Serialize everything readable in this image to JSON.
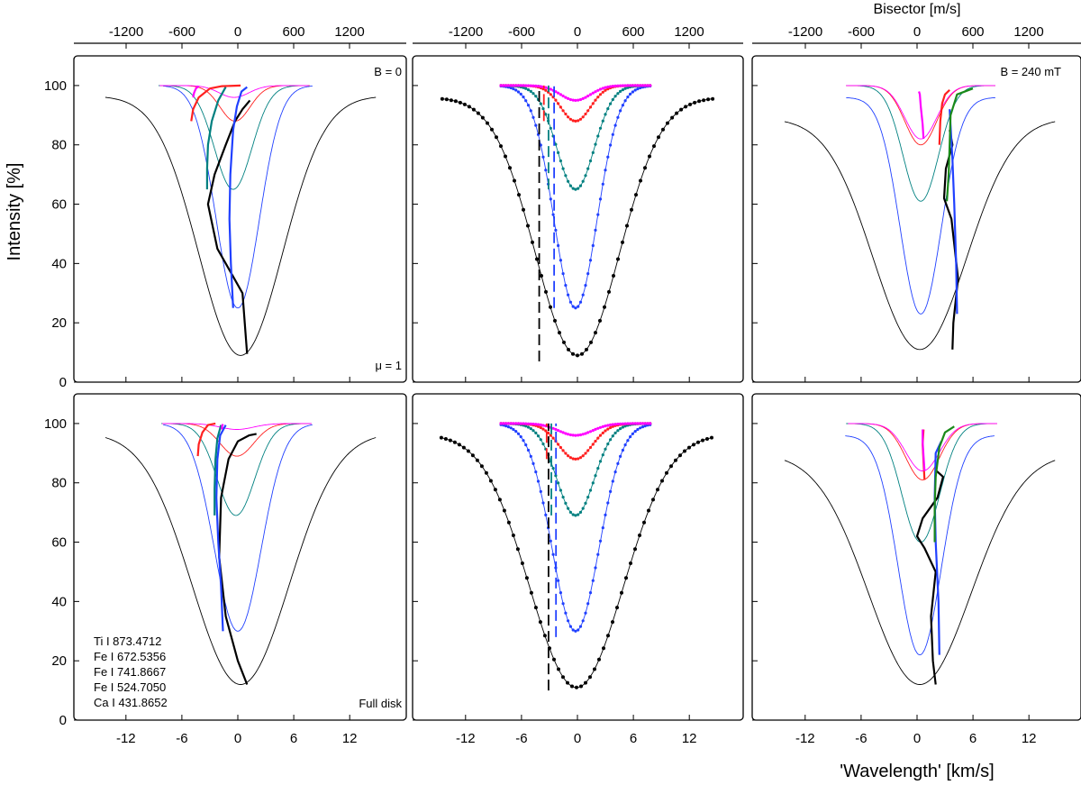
{
  "figure": {
    "ylabel": "Intensity [%]",
    "xlabel": "'Wavelength' [km/s]",
    "top_xlabel": "Bisector [m/s]"
  },
  "axes": {
    "x_ticks": [
      -12,
      -6,
      0,
      6,
      12
    ],
    "x_tick_labels": [
      "-12",
      "-6",
      "0",
      "6",
      "12"
    ],
    "x_range": [
      -15,
      15
    ],
    "y_ticks": [
      0,
      20,
      40,
      60,
      80,
      100
    ],
    "y_tick_labels": [
      "0",
      "20",
      "40",
      "60",
      "80",
      "100"
    ],
    "y_range": [
      0,
      110
    ],
    "top_ticks": [
      -1200,
      -600,
      0,
      600,
      1200
    ],
    "top_tick_labels": [
      "-1200",
      "-600",
      "0",
      "600",
      "1200"
    ],
    "top_range": [
      -1500,
      1500
    ]
  },
  "annotations": {
    "panel_tl_corner": "B = 0",
    "panel_tl_bottom": "μ = 1",
    "panel_tr_corner": "B = 240 mT",
    "panel_bl_bottom": "Full disk"
  },
  "legend": {
    "lines": [
      "Ti I  873.4712",
      "Fe I 672.5356",
      "Fe I 741.8667",
      "Fe I 524.7050",
      "Ca I 431.8652"
    ]
  },
  "colors": {
    "ti": "#ff00ff",
    "fe672": "#ff2020",
    "fe741": "#008080",
    "fe741_green": "#1a8a1a",
    "fe524": "#2040ff",
    "ca": "#000000"
  },
  "chart_data": [
    {
      "panel": "top-left",
      "type": "line",
      "ylim": [
        0,
        110
      ],
      "xlim": [
        -15,
        15
      ],
      "profiles": [
        {
          "line": "Ca I 431.8652",
          "depth": 9,
          "halfwidth": 4.5,
          "continuum": 96.5,
          "center": 0.3
        },
        {
          "line": "Fe I 524.7050",
          "depth": 25,
          "halfwidth": 2.3,
          "continuum": 100,
          "center": 0
        },
        {
          "line": "Fe I 741.8667",
          "depth": 65,
          "halfwidth": 2.0,
          "continuum": 100,
          "center": -0.5
        },
        {
          "line": "Fe I 672.5356",
          "depth": 88,
          "halfwidth": 1.6,
          "continuum": 100,
          "center": -0.3
        },
        {
          "line": "Ti I 873.4712",
          "depth": 96,
          "halfwidth": 1.6,
          "continuum": 100,
          "center": -0.4
        }
      ],
      "bisectors": [
        {
          "line": "Ca I 431.8652",
          "points": [
            [
              100,
              9.5
            ],
            [
              50,
              30
            ],
            [
              -220,
              45
            ],
            [
              -320,
              60
            ],
            [
              -250,
              70
            ],
            [
              -130,
              80
            ],
            [
              -30,
              88
            ],
            [
              50,
              92
            ],
            [
              130,
              95
            ]
          ]
        },
        {
          "line": "Fe I 524.7050",
          "points": [
            [
              -50,
              25
            ],
            [
              -75,
              40
            ],
            [
              -90,
              55
            ],
            [
              -80,
              70
            ],
            [
              -50,
              85
            ],
            [
              -10,
              93
            ],
            [
              40,
              98
            ],
            [
              100,
              99.5
            ]
          ]
        },
        {
          "line": "Fe I 741.8667",
          "points": [
            [
              -330,
              65
            ],
            [
              -330,
              72
            ],
            [
              -320,
              80
            ],
            [
              -280,
              88
            ],
            [
              -210,
              95
            ],
            [
              -130,
              99.5
            ]
          ]
        },
        {
          "line": "Fe I 672.5356",
          "points": [
            [
              -500,
              88
            ],
            [
              -480,
              92
            ],
            [
              -420,
              96
            ],
            [
              -300,
              99
            ],
            [
              -170,
              99.8
            ],
            [
              30,
              100
            ]
          ]
        },
        {
          "line": "Ti I 873.4712",
          "points": [
            [
              -480,
              96
            ],
            [
              -470,
              97.5
            ],
            [
              -450,
              99
            ],
            [
              -420,
              99.8
            ]
          ]
        }
      ]
    },
    {
      "panel": "top-center",
      "type": "line",
      "ylim": [
        0,
        110
      ],
      "xlim": [
        -15,
        15
      ],
      "profiles": [
        {
          "line": "Ca I 431.8652",
          "depth": 9,
          "halfwidth": 4.5,
          "continuum": 96,
          "center": 0
        },
        {
          "line": "Fe I 524.7050",
          "depth": 25,
          "halfwidth": 2.3,
          "continuum": 100,
          "center": -0.2
        },
        {
          "line": "Fe I 741.8667",
          "depth": 65,
          "halfwidth": 2.0,
          "continuum": 100,
          "center": -0.2
        },
        {
          "line": "Fe I 672.5356",
          "depth": 88,
          "halfwidth": 1.6,
          "continuum": 100,
          "center": -0.2
        },
        {
          "line": "Ti I 873.4712",
          "depth": 95,
          "halfwidth": 1.6,
          "continuum": 100,
          "center": -0.2
        }
      ],
      "reference_marks": [
        {
          "line": "Ca I 431.8652",
          "x": -4.1,
          "y_range": [
            7,
            100
          ]
        },
        {
          "line": "Fe I 524.7050",
          "x": -2.5,
          "y_range": [
            25,
            100
          ]
        },
        {
          "line": "Fe I 741.8667",
          "x": -3.1,
          "y_range": [
            65,
            100
          ]
        },
        {
          "line": "Fe I 672.5356",
          "x": -3.6,
          "y_range": [
            88,
            100
          ]
        }
      ]
    },
    {
      "panel": "top-right",
      "type": "line",
      "ylim": [
        0,
        110
      ],
      "xlim": [
        -15,
        15
      ],
      "profiles": [
        {
          "line": "Ca I 431.8652",
          "depth": 11,
          "halfwidth": 5.0,
          "continuum": 89,
          "center": 0.3
        },
        {
          "line": "Fe I 524.7050",
          "depth": 23,
          "halfwidth": 2.2,
          "continuum": 96,
          "center": 0.4
        },
        {
          "line": "Fe I 741.8667",
          "depth": 61,
          "halfwidth": 1.9,
          "continuum": 100,
          "center": 0.4
        },
        {
          "line": "Fe I 672.5356",
          "depth": 80,
          "halfwidth": 1.7,
          "continuum": 100,
          "center": 0.4
        },
        {
          "line": "Ti I 873.4712",
          "depth": 82,
          "halfwidth": 1.7,
          "continuum": 100,
          "center": 0.4
        }
      ],
      "bisectors": [
        {
          "line": "Ca I 431.8652",
          "points": [
            [
              380,
              11
            ],
            [
              390,
              20
            ],
            [
              440,
              35
            ],
            [
              370,
              55
            ],
            [
              290,
              62
            ],
            [
              310,
              72
            ],
            [
              380,
              80
            ],
            [
              350,
              85
            ]
          ]
        },
        {
          "line": "Fe I 524.7050",
          "points": [
            [
              430,
              23
            ],
            [
              420,
              40
            ],
            [
              400,
              60
            ],
            [
              380,
              75
            ],
            [
              350,
              92
            ]
          ]
        },
        {
          "line": "Fe I 741.8667",
          "points": [
            [
              320,
              61
            ],
            [
              340,
              70
            ],
            [
              350,
              80
            ],
            [
              360,
              90
            ],
            [
              430,
              97
            ],
            [
              600,
              99
            ]
          ]
        },
        {
          "line": "Fe I 672.5356",
          "points": [
            [
              240,
              80
            ],
            [
              250,
              88
            ],
            [
              270,
              94
            ],
            [
              300,
              97
            ],
            [
              350,
              98.5
            ]
          ]
        },
        {
          "line": "Ti I 873.4712",
          "points": [
            [
              70,
              82
            ],
            [
              60,
              87
            ],
            [
              40,
              93
            ],
            [
              30,
              97
            ],
            [
              20,
              98
            ]
          ]
        }
      ]
    },
    {
      "panel": "bottom-left",
      "type": "line",
      "ylim": [
        0,
        110
      ],
      "xlim": [
        -15,
        15
      ],
      "profiles": [
        {
          "line": "Ca I 431.8652",
          "depth": 12,
          "halfwidth": 5.2,
          "continuum": 97,
          "center": 0.3
        },
        {
          "line": "Fe I 524.7050",
          "depth": 30,
          "halfwidth": 2.5,
          "continuum": 100,
          "center": 0
        },
        {
          "line": "Fe I 741.8667",
          "depth": 69,
          "halfwidth": 2.0,
          "continuum": 100,
          "center": -0.2
        },
        {
          "line": "Fe I 672.5356",
          "depth": 89,
          "halfwidth": 1.8,
          "continuum": 100,
          "center": -0.1
        },
        {
          "line": "Ti I 873.4712",
          "depth": 98,
          "halfwidth": 1.8,
          "continuum": 100,
          "center": -0.1
        }
      ],
      "bisectors": [
        {
          "line": "Ca I 431.8652",
          "points": [
            [
              100,
              12
            ],
            [
              0,
              20
            ],
            [
              -130,
              35
            ],
            [
              -200,
              55
            ],
            [
              -180,
              75
            ],
            [
              -100,
              88
            ],
            [
              0,
              94
            ],
            [
              120,
              96
            ],
            [
              200,
              96.5
            ]
          ]
        },
        {
          "line": "Fe I 524.7050",
          "points": [
            [
              -160,
              30
            ],
            [
              -180,
              45
            ],
            [
              -210,
              60
            ],
            [
              -230,
              75
            ],
            [
              -220,
              88
            ],
            [
              -190,
              96
            ],
            [
              -130,
              99.5
            ]
          ]
        },
        {
          "line": "Fe I 741.8667",
          "points": [
            [
              -250,
              69
            ],
            [
              -250,
              78
            ],
            [
              -240,
              88
            ],
            [
              -220,
              95
            ],
            [
              -180,
              99.5
            ]
          ]
        },
        {
          "line": "Fe I 672.5356",
          "points": [
            [
              -430,
              89
            ],
            [
              -420,
              93
            ],
            [
              -380,
              97
            ],
            [
              -320,
              99.5
            ],
            [
              -240,
              100
            ]
          ]
        },
        {
          "line": "Ti I 873.4712",
          "points": [
            [
              -170,
              98
            ],
            [
              -170,
              99
            ],
            [
              -160,
              99.8
            ]
          ]
        }
      ]
    },
    {
      "panel": "bottom-center",
      "type": "line",
      "ylim": [
        0,
        110
      ],
      "xlim": [
        -15,
        15
      ],
      "profiles": [
        {
          "line": "Ca I 431.8652",
          "depth": 11,
          "halfwidth": 5.0,
          "continuum": 96.5,
          "center": -0.1
        },
        {
          "line": "Fe I 524.7050",
          "depth": 30,
          "halfwidth": 2.5,
          "continuum": 100,
          "center": -0.2
        },
        {
          "line": "Fe I 741.8667",
          "depth": 69,
          "halfwidth": 2.0,
          "continuum": 100,
          "center": -0.2
        },
        {
          "line": "Fe I 672.5356",
          "depth": 88,
          "halfwidth": 1.8,
          "continuum": 100,
          "center": -0.2
        },
        {
          "line": "Ti I 873.4712",
          "depth": 96,
          "halfwidth": 1.8,
          "continuum": 100,
          "center": -0.2
        }
      ],
      "reference_marks": [
        {
          "line": "Ca I 431.8652",
          "x": -3.1,
          "y_range": [
            10,
            100
          ]
        },
        {
          "line": "Fe I 524.7050",
          "x": -2.3,
          "y_range": [
            28,
            100
          ]
        },
        {
          "line": "Fe I 741.8667",
          "x": -2.8,
          "y_range": [
            69,
            100
          ]
        },
        {
          "line": "Fe I 672.5356",
          "x": -3.3,
          "y_range": [
            88,
            100
          ]
        }
      ]
    },
    {
      "panel": "bottom-right",
      "type": "line",
      "ylim": [
        0,
        110
      ],
      "xlim": [
        -15,
        15
      ],
      "profiles": [
        {
          "line": "Ca I 431.8652",
          "depth": 12,
          "halfwidth": 5.5,
          "continuum": 90,
          "center": 0.3
        },
        {
          "line": "Fe I 524.7050",
          "depth": 22,
          "halfwidth": 2.3,
          "continuum": 96,
          "center": 0.3
        },
        {
          "line": "Fe I 741.8667",
          "depth": 60,
          "halfwidth": 2.0,
          "continuum": 100,
          "center": 0.4
        },
        {
          "line": "Fe I 672.5356",
          "depth": 81,
          "halfwidth": 1.8,
          "continuum": 100,
          "center": 0.6
        },
        {
          "line": "Ti I 873.4712",
          "depth": 84,
          "halfwidth": 1.8,
          "continuum": 100,
          "center": 0.6
        }
      ],
      "bisectors": [
        {
          "line": "Ca I 431.8652",
          "points": [
            [
              200,
              12
            ],
            [
              170,
              20
            ],
            [
              150,
              35
            ],
            [
              200,
              50
            ],
            [
              80,
              58
            ],
            [
              0,
              62
            ],
            [
              60,
              68
            ],
            [
              220,
              75
            ],
            [
              280,
              82
            ],
            [
              210,
              84
            ]
          ]
        },
        {
          "line": "Fe I 524.7050",
          "points": [
            [
              240,
              22
            ],
            [
              230,
              40
            ],
            [
              200,
              60
            ],
            [
              190,
              75
            ],
            [
              200,
              90
            ],
            [
              260,
              94
            ]
          ]
        },
        {
          "line": "Fe I 741.8667",
          "points": [
            [
              190,
              60
            ],
            [
              190,
              72
            ],
            [
              200,
              82
            ],
            [
              240,
              92
            ],
            [
              300,
              97
            ],
            [
              400,
              99
            ]
          ]
        },
        {
          "line": "Fe I 672.5356",
          "points": [
            [
              80,
              81
            ],
            [
              70,
              87
            ],
            [
              60,
              93
            ],
            [
              70,
              98
            ]
          ]
        },
        {
          "line": "Ti I 873.4712",
          "points": [
            [
              80,
              84
            ],
            [
              70,
              89
            ],
            [
              60,
              94
            ],
            [
              60,
              98
            ]
          ]
        }
      ]
    }
  ]
}
